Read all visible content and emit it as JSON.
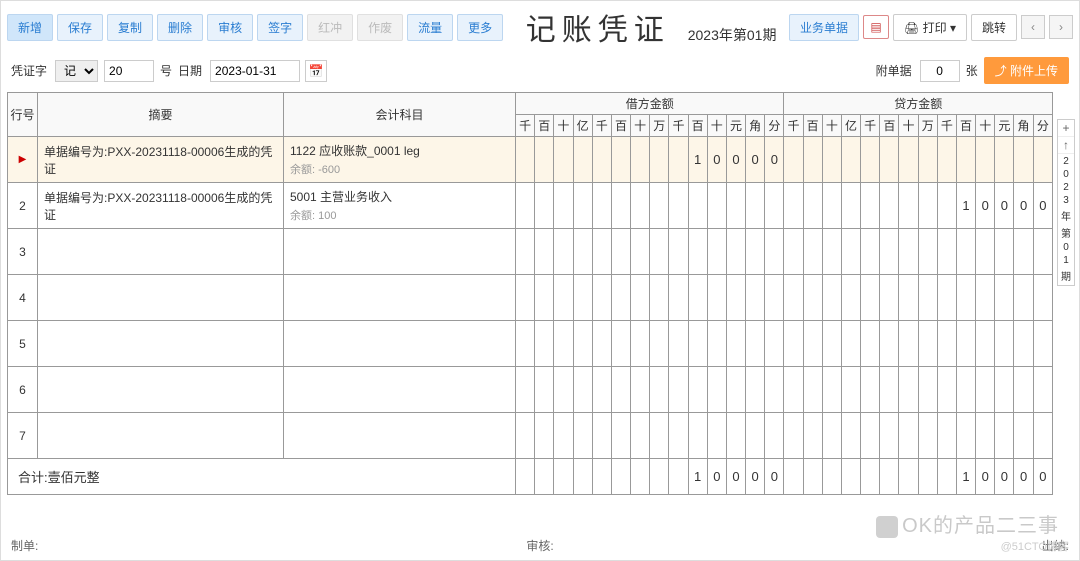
{
  "toolbar": {
    "new": "新增",
    "save": "保存",
    "copy": "复制",
    "delete": "删除",
    "audit": "审核",
    "sign": "签字",
    "redrev": "红冲",
    "void": "作废",
    "flow": "流量",
    "more": "更多",
    "biz": "业务单据",
    "print": "打印",
    "jump": "跳转"
  },
  "title": "记账凭证",
  "period": "2023年第01期",
  "row2": {
    "voucher_word_label": "凭证字",
    "voucher_word_value": "记",
    "number": "20",
    "number_suffix": "号",
    "date_label": "日期",
    "date": "2023-01-31",
    "attach_label": "附单据",
    "attach_count": "0",
    "attach_unit": "张",
    "upload": "附件上传"
  },
  "headers": {
    "rownum": "行号",
    "summary": "摘要",
    "subject": "会计科目",
    "debit": "借方金额",
    "credit": "贷方金额",
    "units": [
      "千",
      "百",
      "十",
      "亿",
      "千",
      "百",
      "十",
      "万",
      "千",
      "百",
      "十",
      "元",
      "角",
      "分"
    ]
  },
  "rows": [
    {
      "marker": "▶",
      "summary": "单据编号为:PXX-20231118-00006生成的凭证",
      "subject": "1122  应收账款_0001 leg",
      "balance": "余额:  -600",
      "debit": [
        "",
        "",
        "",
        "",
        "",
        "",
        "",
        "",
        "",
        "1",
        "0",
        "0",
        "0",
        "0"
      ],
      "credit": [
        "",
        "",
        "",
        "",
        "",
        "",
        "",
        "",
        "",
        "",
        "",
        "",
        "",
        ""
      ]
    },
    {
      "marker": "2",
      "summary": "单据编号为:PXX-20231118-00006生成的凭证",
      "subject": "5001  主营业务收入",
      "balance": "余额:  100",
      "debit": [
        "",
        "",
        "",
        "",
        "",
        "",
        "",
        "",
        "",
        "",
        "",
        "",
        "",
        ""
      ],
      "credit": [
        "",
        "",
        "",
        "",
        "",
        "",
        "",
        "",
        "",
        "1",
        "0",
        "0",
        "0",
        "0"
      ]
    },
    {
      "marker": "3"
    },
    {
      "marker": "4"
    },
    {
      "marker": "5"
    },
    {
      "marker": "6"
    },
    {
      "marker": "7"
    }
  ],
  "total": {
    "label": "合计:壹佰元整",
    "debit": [
      "",
      "",
      "",
      "",
      "",
      "",
      "",
      "",
      "",
      "1",
      "0",
      "0",
      "0",
      "0"
    ],
    "credit": [
      "",
      "",
      "",
      "",
      "",
      "",
      "",
      "",
      "",
      "1",
      "0",
      "0",
      "0",
      "0"
    ]
  },
  "side": {
    "plus": "+",
    "up": "↑",
    "text": [
      "2",
      "0",
      "2",
      "3",
      "年",
      "第",
      "0",
      "1",
      "期"
    ]
  },
  "footer": {
    "maker": "制单:",
    "auditor": "审核:",
    "cashier": "出纳:"
  },
  "watermark": "OK的产品二三事",
  "cto": "@51CTO博客"
}
